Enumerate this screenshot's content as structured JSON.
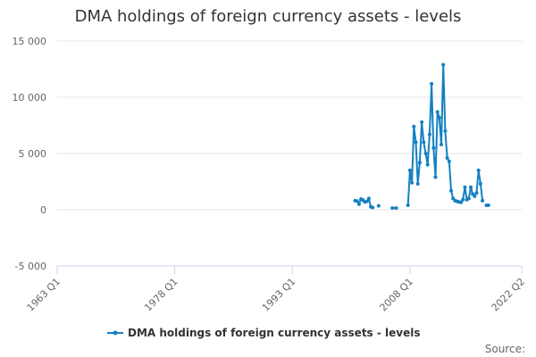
{
  "chart_data": {
    "type": "line",
    "title": "DMA holdings of foreign currency assets - levels",
    "y_ticks": [
      "-5 000",
      "0",
      "5 000",
      "10 000",
      "15 000"
    ],
    "y_tick_values": [
      -5000,
      0,
      5000,
      10000,
      15000
    ],
    "ylim": [
      -5000,
      15000
    ],
    "x_ticks": [
      "1963 Q1",
      "1978 Q1",
      "1993 Q1",
      "2008 Q1",
      "2022 Q2"
    ],
    "x_tick_values": [
      1963.0,
      1978.0,
      1993.0,
      2008.0,
      2022.25
    ],
    "xlim": [
      1963.0,
      2022.25
    ],
    "grid": true,
    "legend_position": "bottom-center",
    "series": [
      {
        "name": "DMA holdings of foreign currency assets - levels",
        "color": "#1380c2",
        "segments": [
          [
            [
              2001.0,
              800
            ],
            [
              2001.25,
              780
            ],
            [
              2001.5,
              500
            ],
            [
              2001.75,
              950
            ],
            [
              2002.0,
              850
            ],
            [
              2002.25,
              700
            ],
            [
              2002.5,
              750
            ],
            [
              2002.75,
              1000
            ],
            [
              2003.0,
              250
            ],
            [
              2003.25,
              200
            ]
          ],
          [
            [
              2004.0,
              350
            ]
          ],
          [
            [
              2005.75,
              150
            ],
            [
              2006.25,
              150
            ]
          ],
          [
            [
              2007.75,
              400
            ],
            [
              2008.0,
              3500
            ],
            [
              2008.25,
              2400
            ],
            [
              2008.5,
              7400
            ],
            [
              2008.75,
              6000
            ],
            [
              2009.0,
              2300
            ],
            [
              2009.25,
              4200
            ],
            [
              2009.5,
              7800
            ],
            [
              2009.75,
              6000
            ],
            [
              2010.0,
              5000
            ],
            [
              2010.25,
              4000
            ],
            [
              2010.5,
              6700
            ],
            [
              2010.75,
              11200
            ],
            [
              2011.0,
              5500
            ],
            [
              2011.25,
              2900
            ],
            [
              2011.5,
              8700
            ],
            [
              2011.75,
              8200
            ],
            [
              2012.0,
              5800
            ],
            [
              2012.25,
              12900
            ],
            [
              2012.5,
              7000
            ],
            [
              2012.75,
              4600
            ],
            [
              2013.0,
              4300
            ],
            [
              2013.25,
              1700
            ],
            [
              2013.5,
              1000
            ],
            [
              2013.75,
              800
            ],
            [
              2014.0,
              750
            ],
            [
              2014.25,
              700
            ],
            [
              2014.5,
              650
            ],
            [
              2014.75,
              900
            ],
            [
              2015.0,
              2000
            ],
            [
              2015.25,
              900
            ],
            [
              2015.5,
              1000
            ],
            [
              2015.75,
              2000
            ],
            [
              2016.0,
              1400
            ],
            [
              2016.25,
              1200
            ],
            [
              2016.5,
              1500
            ],
            [
              2016.75,
              3500
            ],
            [
              2017.0,
              2300
            ],
            [
              2017.25,
              800
            ]
          ],
          [
            [
              2017.75,
              400
            ],
            [
              2018.0,
              400
            ]
          ]
        ]
      }
    ]
  },
  "legend": {
    "label": "DMA holdings of foreign currency assets - levels"
  },
  "credits": {
    "source_label": "Source:"
  }
}
